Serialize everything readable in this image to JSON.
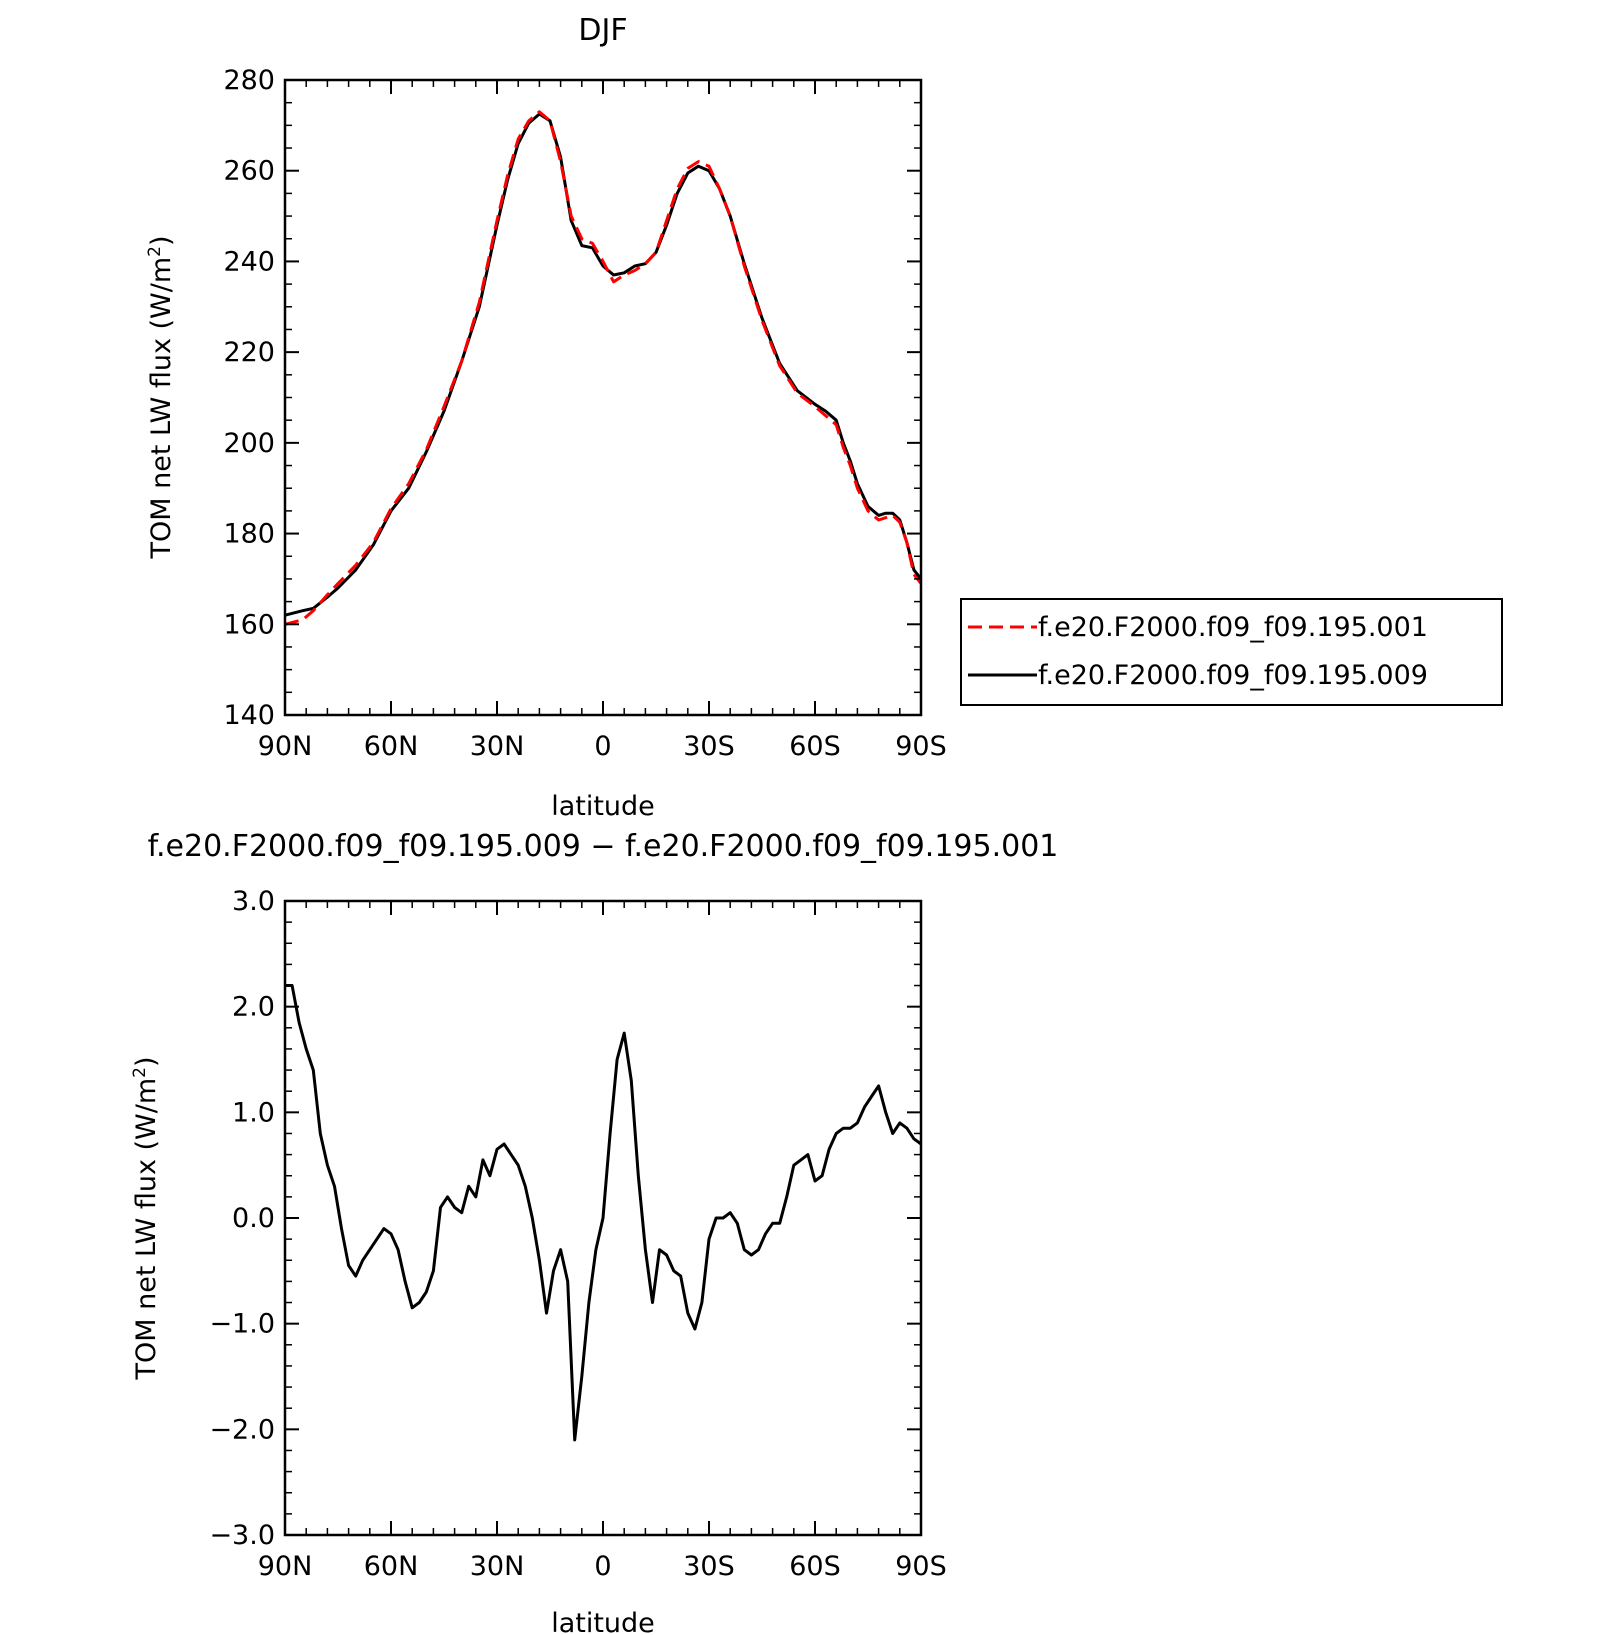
{
  "chart_data": [
    {
      "type": "line",
      "title": "DJF",
      "xlabel": "latitude",
      "ylabel": "TOM net LW flux (W/m²)",
      "ylabel_parts": {
        "main": "TOM net LW flux (W/m",
        "sup": "2",
        "close": ")"
      },
      "xlim": [
        -90,
        90
      ],
      "ylim": [
        140,
        280
      ],
      "x_ticks": [
        -90,
        -60,
        -30,
        0,
        30,
        60,
        90
      ],
      "x_tick_labels": [
        "90N",
        "60N",
        "30N",
        "0",
        "30S",
        "60S",
        "90S"
      ],
      "y_ticks": [
        140,
        160,
        180,
        200,
        220,
        240,
        260,
        280
      ],
      "y_tick_labels": [
        "140",
        "160",
        "180",
        "200",
        "220",
        "240",
        "260",
        "280"
      ],
      "legend_position": "right",
      "series": [
        {
          "name": "f.e20.F2000.f09_f09.195.001",
          "color": "#ff0000",
          "style": "dashed",
          "x": [
            -90,
            -85,
            -82,
            -78,
            -75,
            -70,
            -65,
            -60,
            -55,
            -50,
            -45,
            -40,
            -35,
            -30,
            -27,
            -24,
            -21,
            -18,
            -15,
            -12,
            -9,
            -6,
            -3,
            0,
            3,
            6,
            9,
            12,
            15,
            18,
            21,
            24,
            27,
            30,
            33,
            36,
            40,
            45,
            50,
            55,
            60,
            63,
            66,
            68,
            70,
            72,
            75,
            78,
            80,
            82,
            84,
            86,
            88,
            90
          ],
          "y": [
            160.0,
            161.0,
            163.0,
            166.5,
            169.0,
            173.0,
            178.0,
            185.5,
            191.0,
            198.5,
            208.0,
            218.0,
            231.0,
            249.0,
            259.0,
            267.0,
            271.0,
            273.0,
            271.0,
            262.0,
            250.0,
            245.0,
            244.0,
            240.0,
            235.5,
            237.0,
            238.0,
            239.5,
            242.0,
            249.0,
            256.0,
            260.5,
            262.0,
            261.0,
            256.0,
            250.0,
            239.0,
            227.0,
            217.0,
            211.0,
            208.0,
            206.0,
            204.0,
            199.0,
            195.0,
            190.0,
            185.0,
            183.0,
            183.5,
            184.0,
            182.5,
            178.0,
            171.0,
            169.0
          ]
        },
        {
          "name": "f.e20.F2000.f09_f09.195.009",
          "color": "#000000",
          "style": "solid",
          "x": [
            -90,
            -85,
            -82,
            -78,
            -75,
            -70,
            -65,
            -60,
            -55,
            -50,
            -45,
            -40,
            -35,
            -30,
            -27,
            -24,
            -21,
            -18,
            -15,
            -12,
            -9,
            -6,
            -3,
            0,
            3,
            6,
            9,
            12,
            15,
            18,
            21,
            24,
            27,
            30,
            33,
            36,
            40,
            45,
            50,
            55,
            60,
            63,
            66,
            68,
            70,
            72,
            75,
            78,
            80,
            82,
            84,
            86,
            88,
            90
          ],
          "y": [
            162.0,
            163.0,
            163.5,
            166.0,
            168.0,
            172.0,
            177.5,
            185.0,
            190.0,
            198.0,
            207.0,
            218.0,
            230.0,
            248.0,
            258.0,
            266.0,
            270.5,
            272.5,
            271.0,
            263.0,
            249.0,
            243.5,
            243.0,
            239.0,
            237.0,
            237.5,
            239.0,
            239.5,
            242.0,
            248.0,
            255.0,
            259.5,
            261.0,
            260.0,
            256.0,
            250.0,
            239.5,
            227.5,
            217.5,
            211.5,
            208.5,
            207.0,
            205.0,
            200.0,
            196.0,
            191.0,
            186.0,
            184.0,
            184.5,
            184.5,
            183.0,
            178.0,
            172.0,
            170.0
          ]
        }
      ]
    },
    {
      "type": "line",
      "title": "f.e20.F2000.f09_f09.195.009 − f.e20.F2000.f09_f09.195.001",
      "xlabel": "latitude",
      "ylabel": "TOM net LW flux (W/m²)",
      "ylabel_parts": {
        "main": "TOM net LW flux (W/m",
        "sup": "2",
        "close": ")"
      },
      "xlim": [
        -90,
        90
      ],
      "ylim": [
        -3.0,
        3.0
      ],
      "x_ticks": [
        -90,
        -60,
        -30,
        0,
        30,
        60,
        90
      ],
      "x_tick_labels": [
        "90N",
        "60N",
        "30N",
        "0",
        "30S",
        "60S",
        "90S"
      ],
      "y_ticks": [
        -3.0,
        -2.0,
        -1.0,
        0.0,
        1.0,
        2.0,
        3.0
      ],
      "y_tick_labels": [
        "−3.0",
        "−2.0",
        "−1.0",
        "0.0",
        "1.0",
        "2.0",
        "3.0"
      ],
      "series": [
        {
          "color": "#000000",
          "style": "solid",
          "x": [
            -90,
            -88,
            -86,
            -84,
            -82,
            -80,
            -78,
            -76,
            -74,
            -72,
            -70,
            -68,
            -66,
            -64,
            -62,
            -60,
            -58,
            -56,
            -54,
            -52,
            -50,
            -48,
            -46,
            -44,
            -42,
            -40,
            -38,
            -36,
            -34,
            -32,
            -30,
            -28,
            -26,
            -24,
            -22,
            -20,
            -18,
            -16,
            -14,
            -12,
            -10,
            -8,
            -6,
            -4,
            -2,
            0,
            2,
            4,
            6,
            8,
            10,
            12,
            14,
            16,
            18,
            20,
            22,
            24,
            26,
            28,
            30,
            32,
            34,
            36,
            38,
            40,
            42,
            44,
            46,
            48,
            50,
            52,
            54,
            56,
            58,
            60,
            62,
            64,
            66,
            68,
            70,
            72,
            74,
            76,
            78,
            80,
            82,
            84,
            86,
            88,
            90
          ],
          "y": [
            2.2,
            2.2,
            1.85,
            1.6,
            1.4,
            0.8,
            0.5,
            0.3,
            -0.1,
            -0.45,
            -0.55,
            -0.4,
            -0.3,
            -0.2,
            -0.1,
            -0.15,
            -0.3,
            -0.6,
            -0.85,
            -0.8,
            -0.7,
            -0.5,
            0.1,
            0.2,
            0.1,
            0.05,
            0.3,
            0.2,
            0.55,
            0.4,
            0.65,
            0.7,
            0.6,
            0.5,
            0.3,
            0.0,
            -0.4,
            -0.9,
            -0.5,
            -0.3,
            -0.6,
            -2.1,
            -1.5,
            -0.8,
            -0.3,
            0.0,
            0.8,
            1.5,
            1.75,
            1.3,
            0.4,
            -0.3,
            -0.8,
            -0.3,
            -0.35,
            -0.5,
            -0.55,
            -0.9,
            -1.05,
            -0.8,
            -0.2,
            0.0,
            0.0,
            0.05,
            -0.05,
            -0.3,
            -0.35,
            -0.3,
            -0.15,
            -0.05,
            -0.05,
            0.2,
            0.5,
            0.55,
            0.6,
            0.35,
            0.4,
            0.65,
            0.8,
            0.85,
            0.85,
            0.9,
            1.05,
            1.15,
            1.25,
            1.0,
            0.8,
            0.9,
            0.85,
            0.75,
            0.7
          ]
        }
      ]
    }
  ]
}
